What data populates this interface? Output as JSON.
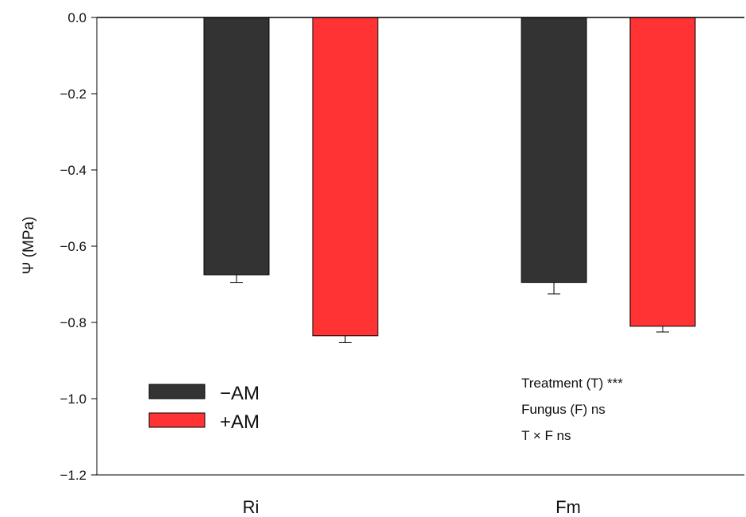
{
  "chart_data": {
    "type": "bar",
    "categories": [
      "Ri",
      "Fm"
    ],
    "series": [
      {
        "name": "−AM",
        "values": [
          -0.675,
          -0.695
        ],
        "errors": [
          0.02,
          0.03
        ],
        "color": "#333333"
      },
      {
        "name": "+AM",
        "values": [
          -0.835,
          -0.81
        ],
        "errors": [
          0.018,
          0.015
        ],
        "color": "#ff3333"
      }
    ],
    "xlabel": "",
    "ylabel": "Ψ (MPa)",
    "ylim": [
      -1.2,
      0.0
    ],
    "yticks": [
      0.0,
      -0.2,
      -0.4,
      -0.6,
      -0.8,
      -1.0,
      -1.2
    ],
    "ytick_labels": [
      "0.0",
      "−0.2",
      "−0.4",
      "−0.6",
      "−0.8",
      "−1.0",
      "−1.2"
    ],
    "grid": false,
    "legend_position": "bottom-left",
    "annotations": [
      "Treatment  (T) ***",
      "Fungus (F) ns",
      "T × F ns"
    ]
  }
}
